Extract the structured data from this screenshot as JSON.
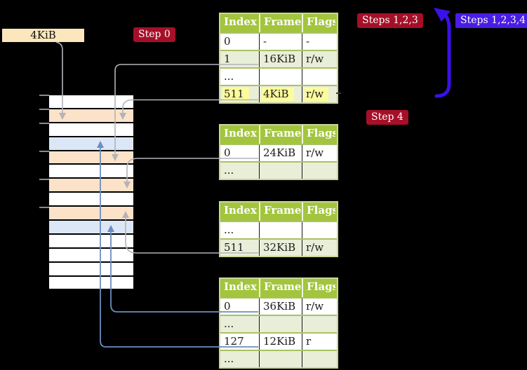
{
  "frame_label": {
    "text": "4KiB"
  },
  "badges": {
    "step0": "Step 0",
    "steps123": "Steps 1,2,3",
    "steps1234": "Steps 1,2,3,4",
    "step4": "Step 4"
  },
  "tables": [
    {
      "name": "page-table-1",
      "headers": [
        "Index",
        "Frame",
        "Flags"
      ],
      "rows": [
        {
          "cells": [
            "0",
            "-",
            "-"
          ]
        },
        {
          "cells": [
            "1",
            "16KiB",
            "r/w"
          ]
        },
        {
          "cells": [
            "...",
            "",
            ""
          ]
        },
        {
          "cells": [
            "511",
            "4KiB",
            "r/w"
          ],
          "highlighted": true
        }
      ]
    },
    {
      "name": "page-table-2",
      "headers": [
        "Index",
        "Frame",
        "Flags"
      ],
      "rows": [
        {
          "cells": [
            "0",
            "24KiB",
            "r/w"
          ]
        },
        {
          "cells": [
            "...",
            "",
            ""
          ]
        }
      ]
    },
    {
      "name": "page-table-3",
      "headers": [
        "Index",
        "Frame",
        "Flags"
      ],
      "rows": [
        {
          "cells": [
            "...",
            "",
            ""
          ]
        },
        {
          "cells": [
            "511",
            "32KiB",
            "r/w"
          ]
        }
      ]
    },
    {
      "name": "page-table-4",
      "headers": [
        "Index",
        "Frame",
        "Flags"
      ],
      "rows": [
        {
          "cells": [
            "0",
            "36KiB",
            "r/w"
          ]
        },
        {
          "cells": [
            "...",
            "",
            ""
          ]
        },
        {
          "cells": [
            "127",
            "12KiB",
            "r"
          ]
        },
        {
          "cells": [
            "...",
            "",
            ""
          ]
        }
      ]
    }
  ],
  "memory": {
    "rows": [
      "white",
      "orange",
      "white",
      "blue",
      "orange",
      "white",
      "orange",
      "white",
      "orange",
      "blue",
      "white",
      "white",
      "white",
      "white"
    ]
  },
  "colors": {
    "bg": "#000000",
    "label-cream": "#fbe7bb",
    "badge-red": "#a60f28",
    "badge-blue": "#4a1de4",
    "arrow-blue": "#3a11e8",
    "header-green": "#a3c53e",
    "table-border": "#c9d69c",
    "row-alt": "#e9eed8",
    "sep-green": "#a9c163",
    "highlight-yellow": "#fcfc9c",
    "mem-orange": "#fce2c8",
    "mem-blue": "#dbe7f6",
    "connector-gray": "#b3b3ba",
    "connector-blue": "#6b8dc0",
    "tick-gray": "#8a8a8a"
  }
}
